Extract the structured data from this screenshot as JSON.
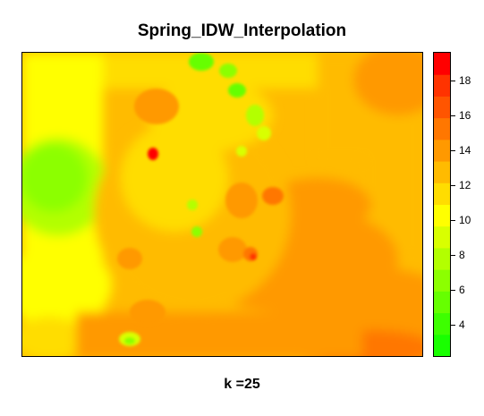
{
  "title": "Spring_IDW_Interpolation",
  "xlabel": "k =25",
  "colors": {
    "low": "#00ff00",
    "mid": "#ffff00",
    "high": "#ff0000"
  },
  "legend": {
    "range": [
      2.2,
      19.6
    ],
    "ticks": [
      4,
      6,
      8,
      10,
      12,
      14,
      16,
      18
    ],
    "bins": [
      "#19ff00",
      "#3dff00",
      "#66ff00",
      "#8cff00",
      "#b3ff00",
      "#d9ff00",
      "#ffff00",
      "#ffdd00",
      "#ffbb00",
      "#ff9900",
      "#ff7700",
      "#ff5500",
      "#ff3300",
      "#ff0000"
    ]
  },
  "chart_data": {
    "type": "heatmap",
    "title": "Spring_IDW_Interpolation",
    "xlabel": "k =25",
    "ylabel": "",
    "zrange": [
      2.2,
      19.6
    ],
    "colorbar_ticks": [
      4,
      6,
      8,
      10,
      12,
      14,
      16,
      18
    ],
    "legend_position": "right",
    "grid": false
  }
}
